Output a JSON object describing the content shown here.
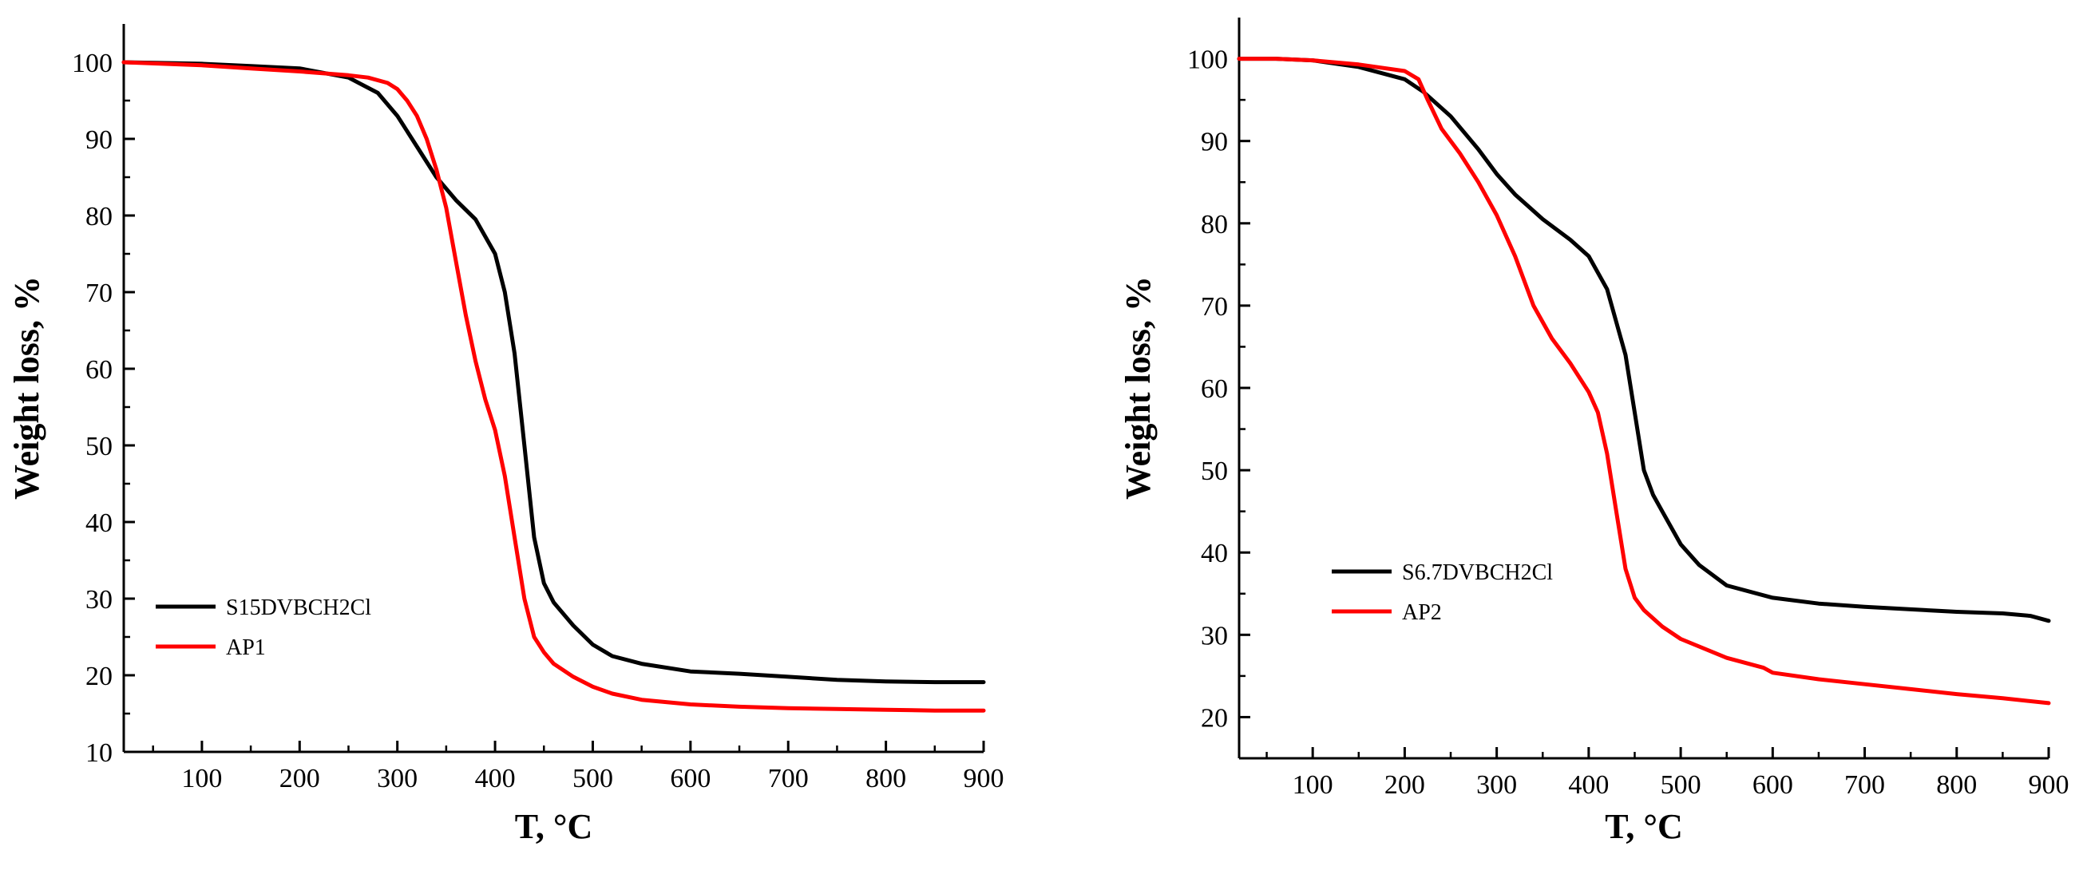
{
  "figure_title": "",
  "chart_data": [
    {
      "type": "line",
      "title": "",
      "xlabel": "T, °C",
      "ylabel": "Weight loss, %",
      "xlim": [
        20,
        900
      ],
      "ylim": [
        10,
        105
      ],
      "x_ticks": [
        100,
        200,
        300,
        400,
        500,
        600,
        700,
        800,
        900
      ],
      "y_ticks": [
        10,
        20,
        30,
        40,
        50,
        60,
        70,
        80,
        90,
        100
      ],
      "legend_position": "lower-left",
      "series": [
        {
          "name": "S15DVBCH2Cl",
          "color": "#000000",
          "x": [
            20,
            100,
            150,
            200,
            250,
            280,
            300,
            320,
            340,
            360,
            380,
            400,
            410,
            420,
            430,
            440,
            450,
            460,
            480,
            500,
            520,
            550,
            600,
            650,
            700,
            750,
            800,
            850,
            900
          ],
          "y": [
            100,
            99.8,
            99.5,
            99.2,
            98,
            96,
            93,
            89,
            85,
            82,
            79.5,
            75,
            70,
            62,
            50,
            38,
            32,
            29.5,
            26.5,
            24,
            22.5,
            21.5,
            20.5,
            20.2,
            19.8,
            19.4,
            19.2,
            19.1,
            19.1
          ]
        },
        {
          "name": "AP1",
          "color": "#ff0000",
          "x": [
            20,
            100,
            150,
            200,
            250,
            270,
            290,
            300,
            310,
            320,
            330,
            340,
            350,
            360,
            370,
            380,
            390,
            400,
            410,
            420,
            430,
            440,
            450,
            460,
            480,
            500,
            520,
            550,
            600,
            650,
            700,
            750,
            800,
            850,
            900
          ],
          "y": [
            100,
            99.6,
            99.2,
            98.8,
            98.3,
            98,
            97.3,
            96.5,
            95,
            93,
            90,
            86,
            81,
            74,
            67,
            61,
            56,
            52,
            46,
            38,
            30,
            25,
            23,
            21.5,
            19.8,
            18.5,
            17.6,
            16.8,
            16.2,
            15.9,
            15.7,
            15.6,
            15.5,
            15.4,
            15.4
          ]
        }
      ]
    },
    {
      "type": "line",
      "title": "",
      "xlabel": "T, °C",
      "ylabel": "Weight loss, %",
      "xlim": [
        20,
        900
      ],
      "ylim": [
        15,
        105
      ],
      "x_ticks": [
        100,
        200,
        300,
        400,
        500,
        600,
        700,
        800,
        900
      ],
      "y_ticks": [
        20,
        30,
        40,
        50,
        60,
        70,
        80,
        90,
        100
      ],
      "legend_position": "center-left",
      "series": [
        {
          "name": "S6.7DVBCH2Cl",
          "color": "#000000",
          "x": [
            20,
            60,
            100,
            150,
            200,
            220,
            250,
            280,
            300,
            320,
            350,
            380,
            400,
            420,
            440,
            450,
            460,
            470,
            480,
            500,
            520,
            550,
            600,
            650,
            700,
            750,
            800,
            850,
            880,
            900
          ],
          "y": [
            100,
            100,
            99.8,
            99,
            97.5,
            96,
            93,
            89,
            86,
            83.5,
            80.5,
            78,
            76,
            72,
            64,
            57,
            50,
            47,
            45,
            41,
            38.5,
            36,
            34.5,
            33.8,
            33.4,
            33.1,
            32.8,
            32.6,
            32.3,
            31.7
          ]
        },
        {
          "name": "AP2",
          "color": "#ff0000",
          "x": [
            20,
            60,
            100,
            150,
            200,
            215,
            225,
            240,
            260,
            280,
            300,
            320,
            340,
            360,
            380,
            400,
            410,
            420,
            430,
            440,
            450,
            460,
            480,
            500,
            550,
            590,
            600,
            650,
            700,
            750,
            800,
            850,
            900
          ],
          "y": [
            100,
            100,
            99.8,
            99.3,
            98.5,
            97.5,
            95,
            91.5,
            88.5,
            85,
            81,
            76,
            70,
            66,
            63,
            59.5,
            57,
            52,
            45,
            38,
            34.5,
            33,
            31,
            29.5,
            27.2,
            26,
            25.4,
            24.6,
            24,
            23.4,
            22.8,
            22.3,
            21.7
          ]
        }
      ]
    }
  ]
}
